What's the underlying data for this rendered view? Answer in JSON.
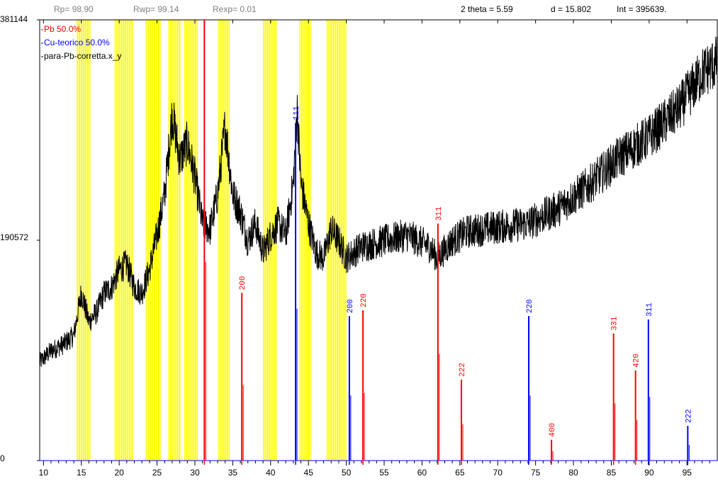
{
  "stats": {
    "rp": "Rp= 98.90",
    "rwp": "Rwp= 99.14",
    "rexp": "Rexp= 0.01",
    "two_theta": "2 theta = 5.59",
    "d": "d = 15.802",
    "int": "Int =   395639."
  },
  "y_axis_labels": {
    "top": "381144",
    "mid": "190572",
    "bottom": "0"
  },
  "colors": {
    "pb": "#ff0000",
    "cu": "#0000ff",
    "pattern": "#000000",
    "excluded": "#ffff00"
  },
  "chart_data": {
    "type": "line",
    "xlim": [
      9.5,
      99
    ],
    "ylim": [
      0,
      381144
    ],
    "xticks": [
      10,
      15,
      20,
      25,
      30,
      35,
      40,
      45,
      50,
      55,
      60,
      65,
      70,
      75,
      80,
      85,
      90,
      95
    ],
    "legend": [
      {
        "label": "Pb  50.0%",
        "color": "#ff0000"
      },
      {
        "label": "Cu-teorico  50.0%",
        "color": "#0000ff"
      },
      {
        "label": "para-Pb-corretta.x_y",
        "color": "#000000"
      }
    ],
    "excluded_regions": [
      [
        14.4,
        16.2
      ],
      [
        19.4,
        21.8
      ],
      [
        23.5,
        25.5
      ],
      [
        26.5,
        28.2
      ],
      [
        28.6,
        30.4
      ],
      [
        33.1,
        34.6
      ],
      [
        39.0,
        40.8
      ],
      [
        43.8,
        45.3
      ],
      [
        47.4,
        50.0
      ]
    ],
    "observed_pattern": {
      "name": "para-Pb-corretta.x_y",
      "points": [
        [
          9.5,
          85000
        ],
        [
          11,
          95000
        ],
        [
          12.5,
          100000
        ],
        [
          14,
          108000
        ],
        [
          15,
          145000
        ],
        [
          16,
          120000
        ],
        [
          17,
          128000
        ],
        [
          18,
          145000
        ],
        [
          19,
          150000
        ],
        [
          20,
          165000
        ],
        [
          21,
          170000
        ],
        [
          22,
          150000
        ],
        [
          23,
          145000
        ],
        [
          24,
          165000
        ],
        [
          25,
          195000
        ],
        [
          26,
          230000
        ],
        [
          27,
          300000
        ],
        [
          28,
          260000
        ],
        [
          29,
          275000
        ],
        [
          30,
          245000
        ],
        [
          31,
          205000
        ],
        [
          32,
          200000
        ],
        [
          33,
          230000
        ],
        [
          34,
          290000
        ],
        [
          35,
          230000
        ],
        [
          36,
          215000
        ],
        [
          37,
          190000
        ],
        [
          38,
          205000
        ],
        [
          39,
          180000
        ],
        [
          40,
          195000
        ],
        [
          41,
          205000
        ],
        [
          42,
          195000
        ],
        [
          43,
          240000
        ],
        [
          43.5,
          305000
        ],
        [
          44,
          240000
        ],
        [
          45,
          205000
        ],
        [
          46,
          180000
        ],
        [
          47,
          175000
        ],
        [
          48,
          200000
        ],
        [
          49,
          190000
        ],
        [
          50,
          175000
        ],
        [
          52,
          185000
        ],
        [
          55,
          190000
        ],
        [
          58,
          195000
        ],
        [
          61,
          185000
        ],
        [
          62,
          175000
        ],
        [
          64,
          190000
        ],
        [
          66,
          198000
        ],
        [
          70,
          202000
        ],
        [
          74,
          205000
        ],
        [
          78,
          218000
        ],
        [
          82,
          238000
        ],
        [
          86,
          262000
        ],
        [
          90,
          280000
        ],
        [
          94,
          305000
        ],
        [
          97,
          335000
        ],
        [
          99,
          345000
        ]
      ]
    },
    "series": [
      {
        "name": "Pb  50.0%",
        "color": "#ff0000",
        "peaks": [
          {
            "x": 31.25,
            "y": 381144,
            "hkl": ""
          },
          {
            "x": 36.2,
            "y": 145000,
            "hkl": "200"
          },
          {
            "x": 52.2,
            "y": 130000,
            "hkl": "220"
          },
          {
            "x": 62.1,
            "y": 205000,
            "hkl": "311"
          },
          {
            "x": 65.2,
            "y": 70000,
            "hkl": "222"
          },
          {
            "x": 77.1,
            "y": 18000,
            "hkl": "400"
          },
          {
            "x": 85.3,
            "y": 110000,
            "hkl": "331"
          },
          {
            "x": 88.2,
            "y": 78000,
            "hkl": "420"
          }
        ]
      },
      {
        "name": "Cu-teorico  50.0%",
        "color": "#0000ff",
        "peaks": [
          {
            "x": 43.3,
            "y": 292000,
            "hkl": "111"
          },
          {
            "x": 50.4,
            "y": 125000,
            "hkl": "200"
          },
          {
            "x": 74.1,
            "y": 125000,
            "hkl": "220"
          },
          {
            "x": 89.9,
            "y": 122000,
            "hkl": "311"
          },
          {
            "x": 95.1,
            "y": 30000,
            "hkl": "222"
          }
        ]
      }
    ]
  }
}
